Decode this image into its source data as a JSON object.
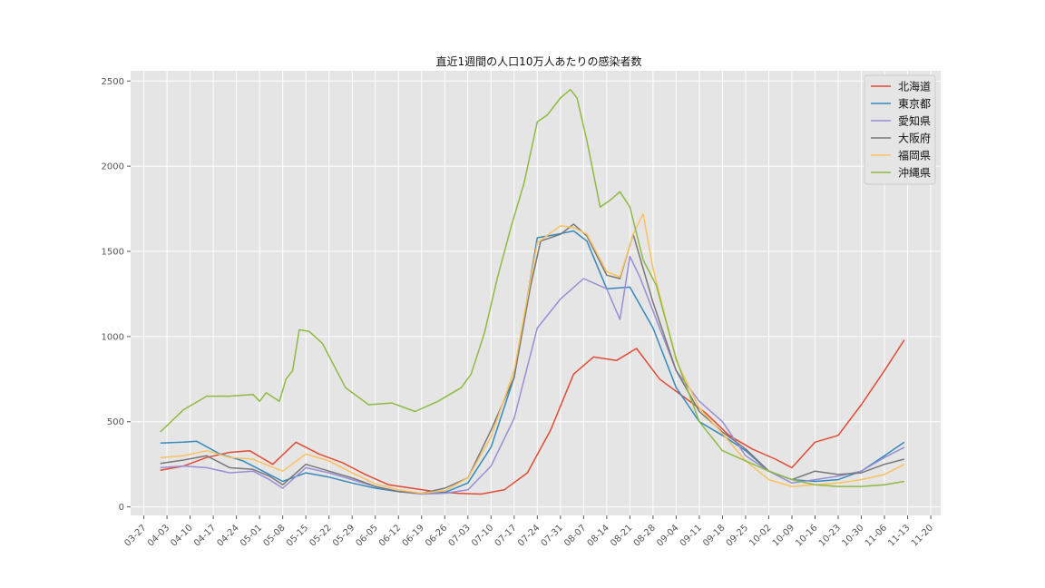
{
  "chart_data": {
    "type": "line",
    "title": "直近1週間の人口10万人あたりの感染者数",
    "xlabel": "",
    "ylabel": "",
    "ylim": [
      -50,
      2560
    ],
    "yticks": [
      0,
      500,
      1000,
      1500,
      2000,
      2500
    ],
    "xlim": [
      "2021-03-23",
      "2021-11-23"
    ],
    "xtick_labels": [
      "03-27",
      "04-03",
      "04-10",
      "04-17",
      "04-24",
      "05-01",
      "05-08",
      "05-15",
      "05-22",
      "05-29",
      "06-05",
      "06-12",
      "06-19",
      "06-26",
      "07-03",
      "07-10",
      "07-17",
      "07-24",
      "07-31",
      "08-07",
      "08-14",
      "08-21",
      "08-28",
      "09-04",
      "09-11",
      "09-18",
      "09-25",
      "10-02",
      "10-09",
      "10-16",
      "10-23",
      "10-30",
      "11-06",
      "11-13",
      "11-20"
    ],
    "grid": true,
    "legend_position": "top-right",
    "series": [
      {
        "name": "北海道",
        "color": "#E24A33",
        "x": [
          "2021-04-01",
          "2021-04-08",
          "2021-04-15",
          "2021-04-22",
          "2021-04-28",
          "2021-05-05",
          "2021-05-12",
          "2021-05-19",
          "2021-05-26",
          "2021-06-02",
          "2021-06-09",
          "2021-06-16",
          "2021-06-23",
          "2021-06-30",
          "2021-07-07",
          "2021-07-14",
          "2021-07-21",
          "2021-07-28",
          "2021-08-04",
          "2021-08-10",
          "2021-08-17",
          "2021-08-23",
          "2021-08-30",
          "2021-09-06",
          "2021-09-13",
          "2021-09-20",
          "2021-09-27",
          "2021-10-04",
          "2021-10-09",
          "2021-10-16",
          "2021-10-23",
          "2021-10-30",
          "2021-11-06",
          "2021-11-12"
        ],
        "values": [
          215,
          240,
          290,
          320,
          330,
          250,
          380,
          310,
          260,
          190,
          130,
          110,
          90,
          80,
          75,
          100,
          200,
          450,
          780,
          880,
          860,
          930,
          750,
          650,
          550,
          420,
          340,
          280,
          230,
          380,
          420,
          600,
          800,
          980
        ]
      },
      {
        "name": "東京都",
        "color": "#348ABD",
        "x": [
          "2021-04-01",
          "2021-04-08",
          "2021-04-12",
          "2021-04-19",
          "2021-04-26",
          "2021-05-03",
          "2021-05-08",
          "2021-05-15",
          "2021-05-22",
          "2021-05-29",
          "2021-06-05",
          "2021-06-12",
          "2021-06-19",
          "2021-06-26",
          "2021-07-03",
          "2021-07-10",
          "2021-07-17",
          "2021-07-24",
          "2021-07-30",
          "2021-08-04",
          "2021-08-08",
          "2021-08-14",
          "2021-08-21",
          "2021-08-28",
          "2021-09-04",
          "2021-09-11",
          "2021-09-18",
          "2021-09-25",
          "2021-10-02",
          "2021-10-09",
          "2021-10-16",
          "2021-10-23",
          "2021-10-30",
          "2021-11-06",
          "2021-11-12"
        ],
        "values": [
          375,
          380,
          385,
          310,
          270,
          200,
          150,
          200,
          175,
          140,
          110,
          90,
          80,
          85,
          140,
          350,
          760,
          1580,
          1600,
          1620,
          1560,
          1280,
          1290,
          1050,
          700,
          500,
          420,
          330,
          210,
          160,
          150,
          160,
          210,
          300,
          380
        ]
      },
      {
        "name": "愛知県",
        "color": "#988ED5",
        "x": [
          "2021-04-01",
          "2021-04-08",
          "2021-04-15",
          "2021-04-22",
          "2021-04-29",
          "2021-05-04",
          "2021-05-08",
          "2021-05-15",
          "2021-05-22",
          "2021-05-29",
          "2021-06-05",
          "2021-06-12",
          "2021-06-19",
          "2021-06-26",
          "2021-07-03",
          "2021-07-10",
          "2021-07-17",
          "2021-07-24",
          "2021-07-31",
          "2021-08-07",
          "2021-08-14",
          "2021-08-18",
          "2021-08-21",
          "2021-08-24",
          "2021-08-28",
          "2021-09-04",
          "2021-09-11",
          "2021-09-18",
          "2021-09-25",
          "2021-10-02",
          "2021-10-09",
          "2021-10-16",
          "2021-10-23",
          "2021-10-30",
          "2021-11-06",
          "2021-11-12"
        ],
        "values": [
          230,
          240,
          230,
          200,
          210,
          160,
          110,
          230,
          200,
          160,
          120,
          90,
          75,
          80,
          100,
          240,
          520,
          1050,
          1220,
          1340,
          1280,
          1100,
          1470,
          1350,
          1150,
          800,
          620,
          500,
          300,
          210,
          140,
          160,
          180,
          210,
          290,
          350
        ]
      },
      {
        "name": "大阪府",
        "color": "#777777",
        "x": [
          "2021-04-01",
          "2021-04-08",
          "2021-04-15",
          "2021-04-22",
          "2021-04-29",
          "2021-05-04",
          "2021-05-08",
          "2021-05-15",
          "2021-05-22",
          "2021-05-29",
          "2021-06-05",
          "2021-06-12",
          "2021-06-19",
          "2021-06-26",
          "2021-07-03",
          "2021-07-10",
          "2021-07-17",
          "2021-07-22",
          "2021-07-25",
          "2021-07-31",
          "2021-08-04",
          "2021-08-08",
          "2021-08-14",
          "2021-08-18",
          "2021-08-22",
          "2021-08-28",
          "2021-09-04",
          "2021-09-11",
          "2021-09-18",
          "2021-09-25",
          "2021-10-02",
          "2021-10-09",
          "2021-10-16",
          "2021-10-23",
          "2021-10-30",
          "2021-11-06",
          "2021-11-12"
        ],
        "values": [
          255,
          275,
          300,
          230,
          220,
          180,
          130,
          250,
          210,
          170,
          120,
          90,
          80,
          110,
          170,
          450,
          760,
          1300,
          1560,
          1600,
          1660,
          1590,
          1360,
          1340,
          1600,
          1200,
          800,
          560,
          440,
          340,
          210,
          160,
          210,
          190,
          200,
          250,
          280
        ]
      },
      {
        "name": "福岡県",
        "color": "#FBC15E",
        "x": [
          "2021-04-01",
          "2021-04-08",
          "2021-04-15",
          "2021-04-22",
          "2021-04-29",
          "2021-05-04",
          "2021-05-08",
          "2021-05-15",
          "2021-05-22",
          "2021-05-29",
          "2021-06-05",
          "2021-06-12",
          "2021-06-19",
          "2021-06-26",
          "2021-07-03",
          "2021-07-10",
          "2021-07-17",
          "2021-07-24",
          "2021-07-31",
          "2021-08-04",
          "2021-08-08",
          "2021-08-14",
          "2021-08-18",
          "2021-08-22",
          "2021-08-25",
          "2021-08-28",
          "2021-09-04",
          "2021-09-11",
          "2021-09-18",
          "2021-09-25",
          "2021-10-02",
          "2021-10-09",
          "2021-10-16",
          "2021-10-23",
          "2021-10-30",
          "2021-11-06",
          "2021-11-12"
        ],
        "values": [
          290,
          300,
          330,
          290,
          280,
          240,
          210,
          310,
          270,
          200,
          135,
          100,
          80,
          95,
          170,
          410,
          800,
          1550,
          1650,
          1640,
          1600,
          1380,
          1350,
          1600,
          1720,
          1400,
          860,
          580,
          430,
          270,
          160,
          120,
          130,
          140,
          160,
          190,
          250
        ]
      },
      {
        "name": "沖縄県",
        "color": "#8EBA42",
        "x": [
          "2021-04-01",
          "2021-04-08",
          "2021-04-15",
          "2021-04-22",
          "2021-04-29",
          "2021-05-01",
          "2021-05-03",
          "2021-05-07",
          "2021-05-09",
          "2021-05-11",
          "2021-05-13",
          "2021-05-16",
          "2021-05-20",
          "2021-05-27",
          "2021-06-03",
          "2021-06-10",
          "2021-06-17",
          "2021-06-24",
          "2021-07-01",
          "2021-07-04",
          "2021-07-08",
          "2021-07-12",
          "2021-07-16",
          "2021-07-20",
          "2021-07-24",
          "2021-07-27",
          "2021-07-31",
          "2021-08-03",
          "2021-08-05",
          "2021-08-08",
          "2021-08-12",
          "2021-08-15",
          "2021-08-18",
          "2021-08-21",
          "2021-08-25",
          "2021-08-29",
          "2021-09-04",
          "2021-09-11",
          "2021-09-18",
          "2021-09-25",
          "2021-10-02",
          "2021-10-09",
          "2021-10-16",
          "2021-10-23",
          "2021-10-30",
          "2021-11-06",
          "2021-11-12"
        ],
        "values": [
          440,
          570,
          650,
          650,
          660,
          620,
          670,
          620,
          750,
          800,
          1040,
          1030,
          960,
          700,
          600,
          610,
          560,
          620,
          700,
          780,
          1020,
          1350,
          1640,
          1900,
          2260,
          2300,
          2400,
          2450,
          2400,
          2150,
          1760,
          1800,
          1850,
          1760,
          1450,
          1300,
          870,
          500,
          330,
          270,
          210,
          160,
          130,
          120,
          120,
          130,
          150
        ]
      }
    ]
  }
}
